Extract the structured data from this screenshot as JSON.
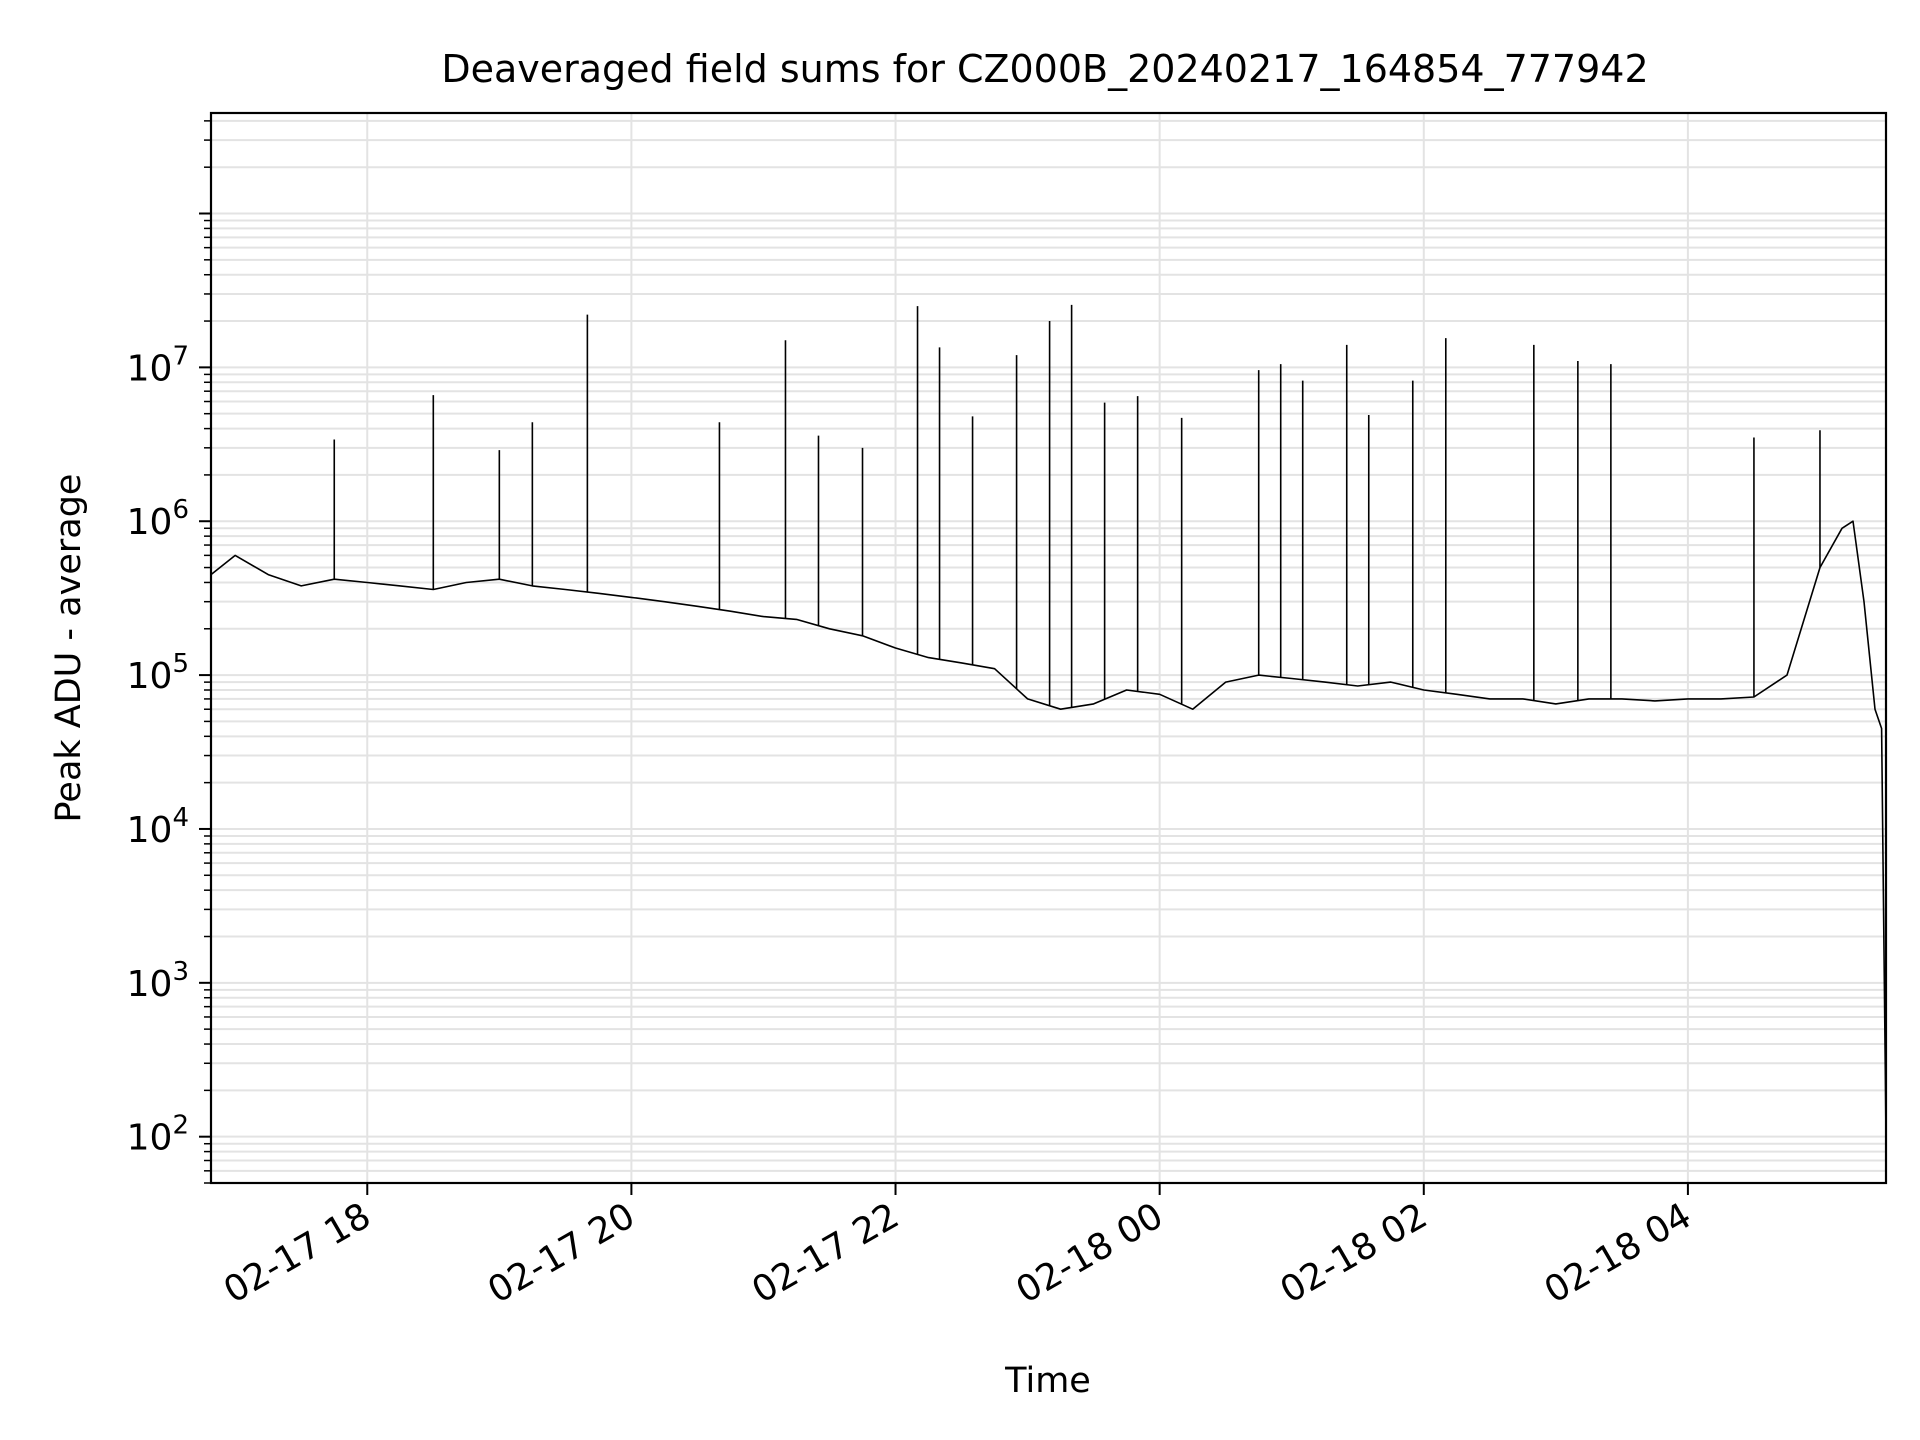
{
  "chart_data": {
    "type": "line",
    "title": "Deaveraged field sums for CZ000B_20240217_164854_777942",
    "xlabel": "Time",
    "ylabel": "Peak ADU - average",
    "yscale": "log",
    "ylim": [
      50,
      450000000
    ],
    "xlim": [
      "2024-02-17 16:49",
      "2024-02-18 05:30"
    ],
    "x_ticks": [
      "02-17 18",
      "02-17 20",
      "02-17 22",
      "02-18 00",
      "02-18 02",
      "02-18 04"
    ],
    "y_ticks": [
      {
        "base": "10",
        "exp": "2"
      },
      {
        "base": "10",
        "exp": "3"
      },
      {
        "base": "10",
        "exp": "4"
      },
      {
        "base": "10",
        "exp": "5"
      },
      {
        "base": "10",
        "exp": "6"
      },
      {
        "base": "10",
        "exp": "7"
      }
    ],
    "grid": true,
    "line_color": "#000000",
    "grid_color": "#e3e3e3",
    "series": [
      {
        "x": [
          "2024-02-17 16:49",
          "2024-02-17 17:00",
          "2024-02-17 17:15",
          "2024-02-17 17:30",
          "2024-02-17 17:45",
          "2024-02-17 18:00",
          "2024-02-17 18:15",
          "2024-02-17 18:30",
          "2024-02-17 18:45",
          "2024-02-17 19:00",
          "2024-02-17 19:15",
          "2024-02-17 19:30",
          "2024-02-17 19:45",
          "2024-02-17 20:00",
          "2024-02-17 20:15",
          "2024-02-17 20:30",
          "2024-02-17 20:45",
          "2024-02-17 21:00",
          "2024-02-17 21:15",
          "2024-02-17 21:30",
          "2024-02-17 21:45",
          "2024-02-17 22:00",
          "2024-02-17 22:15",
          "2024-02-17 22:30",
          "2024-02-17 22:45",
          "2024-02-17 23:00",
          "2024-02-17 23:15",
          "2024-02-17 23:30",
          "2024-02-17 23:45",
          "2024-02-18 00:00",
          "2024-02-18 00:15",
          "2024-02-18 00:30",
          "2024-02-18 00:45",
          "2024-02-18 01:00",
          "2024-02-18 01:15",
          "2024-02-18 01:30",
          "2024-02-18 01:45",
          "2024-02-18 02:00",
          "2024-02-18 02:15",
          "2024-02-18 02:30",
          "2024-02-18 02:45",
          "2024-02-18 03:00",
          "2024-02-18 03:15",
          "2024-02-18 03:30",
          "2024-02-18 03:45",
          "2024-02-18 04:00",
          "2024-02-18 04:15",
          "2024-02-18 04:30",
          "2024-02-18 04:45",
          "2024-02-18 05:00",
          "2024-02-18 05:10",
          "2024-02-18 05:15",
          "2024-02-18 05:20",
          "2024-02-18 05:25",
          "2024-02-18 05:28",
          "2024-02-18 05:30"
        ],
        "y": [
          450000,
          600000,
          450000,
          380000,
          420000,
          400000,
          380000,
          360000,
          400000,
          420000,
          380000,
          360000,
          340000,
          320000,
          300000,
          280000,
          260000,
          240000,
          230000,
          200000,
          180000,
          150000,
          130000,
          120000,
          110000,
          70000,
          60000,
          65000,
          80000,
          75000,
          60000,
          90000,
          100000,
          95000,
          90000,
          85000,
          90000,
          80000,
          75000,
          70000,
          70000,
          65000,
          70000,
          70000,
          68000,
          70000,
          70000,
          72000,
          100000,
          500000,
          900000,
          1000000,
          300000,
          60000,
          45000,
          100
        ]
      }
    ],
    "spikes": [
      {
        "x": "2024-02-17 17:45",
        "y": 3400000
      },
      {
        "x": "2024-02-17 18:30",
        "y": 6600000
      },
      {
        "x": "2024-02-17 19:00",
        "y": 2900000
      },
      {
        "x": "2024-02-17 19:15",
        "y": 4400000
      },
      {
        "x": "2024-02-17 19:40",
        "y": 22000000
      },
      {
        "x": "2024-02-17 20:40",
        "y": 4400000
      },
      {
        "x": "2024-02-17 21:10",
        "y": 15000000
      },
      {
        "x": "2024-02-17 21:25",
        "y": 3600000
      },
      {
        "x": "2024-02-17 21:45",
        "y": 3000000
      },
      {
        "x": "2024-02-17 22:10",
        "y": 25000000
      },
      {
        "x": "2024-02-17 22:20",
        "y": 13500000
      },
      {
        "x": "2024-02-17 22:35",
        "y": 4800000
      },
      {
        "x": "2024-02-17 22:55",
        "y": 12000000
      },
      {
        "x": "2024-02-17 23:10",
        "y": 20000000
      },
      {
        "x": "2024-02-17 23:20",
        "y": 25500000
      },
      {
        "x": "2024-02-17 23:35",
        "y": 5900000
      },
      {
        "x": "2024-02-17 23:50",
        "y": 6500000
      },
      {
        "x": "2024-02-18 00:10",
        "y": 4700000
      },
      {
        "x": "2024-02-18 00:45",
        "y": 9600000
      },
      {
        "x": "2024-02-18 00:55",
        "y": 10500000
      },
      {
        "x": "2024-02-18 01:05",
        "y": 8200000
      },
      {
        "x": "2024-02-18 01:25",
        "y": 14000000
      },
      {
        "x": "2024-02-18 01:35",
        "y": 4900000
      },
      {
        "x": "2024-02-18 01:55",
        "y": 8200000
      },
      {
        "x": "2024-02-18 02:10",
        "y": 15500000
      },
      {
        "x": "2024-02-18 02:50",
        "y": 14000000
      },
      {
        "x": "2024-02-18 03:10",
        "y": 11000000
      },
      {
        "x": "2024-02-18 03:25",
        "y": 10500000
      },
      {
        "x": "2024-02-18 04:30",
        "y": 3500000
      },
      {
        "x": "2024-02-18 05:00",
        "y": 3900000
      }
    ]
  }
}
